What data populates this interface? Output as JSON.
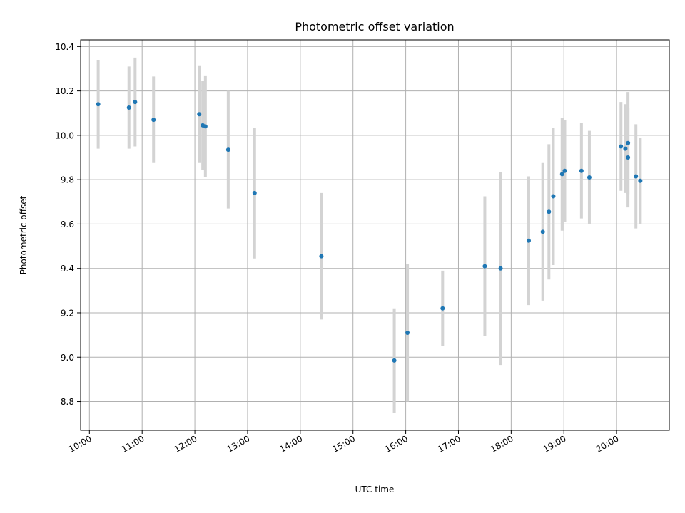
{
  "chart_data": {
    "type": "scatter",
    "title": "Photometric offset variation",
    "xlabel": "UTC time",
    "ylabel": "Photometric offset",
    "xlim": [
      "09:50",
      "21:00"
    ],
    "ylim": [
      8.67,
      10.43
    ],
    "grid": true,
    "colors": {
      "points": "#1f77b4",
      "errorbars": "#d3d3d3",
      "grid": "#b0b0b0"
    },
    "x_ticks": [
      "10:00",
      "11:00",
      "12:00",
      "13:00",
      "14:00",
      "15:00",
      "16:00",
      "17:00",
      "18:00",
      "19:00",
      "20:00"
    ],
    "y_ticks": [
      "8.8",
      "9.0",
      "9.2",
      "9.4",
      "9.6",
      "9.8",
      "10.0",
      "10.2",
      "10.4"
    ],
    "series": [
      {
        "points": [
          {
            "time": "10:10",
            "y": 10.14,
            "yerr": 0.2
          },
          {
            "time": "10:45",
            "y": 10.125,
            "yerr": 0.185
          },
          {
            "time": "10:52",
            "y": 10.15,
            "yerr": 0.2
          },
          {
            "time": "11:13",
            "y": 10.07,
            "yerr": 0.195
          },
          {
            "time": "12:05",
            "y": 10.095,
            "yerr": 0.22
          },
          {
            "time": "12:09",
            "y": 10.045,
            "yerr": 0.2
          },
          {
            "time": "12:12",
            "y": 10.04,
            "yerr": 0.23
          },
          {
            "time": "12:38",
            "y": 9.935,
            "yerr": 0.265
          },
          {
            "time": "13:08",
            "y": 9.74,
            "yerr": 0.295
          },
          {
            "time": "14:24",
            "y": 9.455,
            "yerr": 0.285
          },
          {
            "time": "15:47",
            "y": 8.985,
            "yerr": 0.235
          },
          {
            "time": "16:02",
            "y": 9.11,
            "yerr": 0.31
          },
          {
            "time": "16:42",
            "y": 9.22,
            "yerr": 0.17
          },
          {
            "time": "17:30",
            "y": 9.41,
            "yerr": 0.315
          },
          {
            "time": "17:48",
            "y": 9.4,
            "yerr": 0.435
          },
          {
            "time": "18:20",
            "y": 9.525,
            "yerr": 0.29
          },
          {
            "time": "18:36",
            "y": 9.565,
            "yerr": 0.31
          },
          {
            "time": "18:43",
            "y": 9.655,
            "yerr": 0.305
          },
          {
            "time": "18:48",
            "y": 9.725,
            "yerr": 0.31
          },
          {
            "time": "18:58",
            "y": 9.825,
            "yerr": 0.255
          },
          {
            "time": "19:01",
            "y": 9.84,
            "yerr": 0.23
          },
          {
            "time": "19:20",
            "y": 9.84,
            "yerr": 0.215
          },
          {
            "time": "19:29",
            "y": 9.81,
            "yerr": 0.21
          },
          {
            "time": "20:05",
            "y": 9.95,
            "yerr": 0.2
          },
          {
            "time": "20:10",
            "y": 9.94,
            "yerr": 0.2
          },
          {
            "time": "20:13",
            "y": 9.965,
            "yerr": 0.23
          },
          {
            "time": "20:13",
            "y": 9.9,
            "yerr": 0.225
          },
          {
            "time": "20:22",
            "y": 9.815,
            "yerr": 0.235
          },
          {
            "time": "20:27",
            "y": 9.795,
            "yerr": 0.195
          }
        ]
      }
    ]
  }
}
